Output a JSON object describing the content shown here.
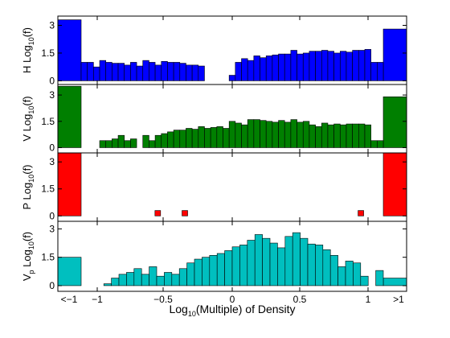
{
  "chart_data": [
    {
      "type": "bar",
      "panel": "H",
      "ylabel": {
        "pre": "H Log",
        "sub": "10",
        "post": "(f)"
      },
      "color": "#0000ff",
      "ylim": [
        -0.2,
        3.5
      ],
      "yticks": [
        "0",
        "1.5",
        "3"
      ],
      "values": [
        3.3,
        1.0,
        1.0,
        0.75,
        1.1,
        1.0,
        0.95,
        0.95,
        0.85,
        1.0,
        0.8,
        1.1,
        1.0,
        0.85,
        1.05,
        1.0,
        1.0,
        0.95,
        0.85,
        0.85,
        0.8,
        0,
        0,
        0,
        0,
        0.3,
        1.0,
        1.2,
        1.1,
        1.35,
        1.25,
        1.35,
        1.4,
        1.45,
        1.45,
        1.65,
        1.45,
        1.5,
        1.6,
        1.6,
        1.65,
        1.6,
        1.5,
        1.6,
        1.55,
        1.65,
        1.65,
        1.7,
        1.0,
        1.0,
        2.8
      ]
    },
    {
      "type": "bar",
      "panel": "V",
      "ylabel": {
        "pre": "V Log",
        "sub": "10",
        "post": "(f)"
      },
      "color": "#007f00",
      "ylim": [
        -0.3,
        3.6
      ],
      "yticks": [
        "0",
        "1.5",
        "3"
      ],
      "values": [
        3.5,
        0,
        0,
        0,
        0.4,
        0.4,
        0.5,
        0.7,
        0.4,
        0.5,
        0,
        0.7,
        0.4,
        0.7,
        0.8,
        0.9,
        1.0,
        1.0,
        1.1,
        1.05,
        1.2,
        1.1,
        1.15,
        1.2,
        1.1,
        1.5,
        1.4,
        1.3,
        1.6,
        1.6,
        1.55,
        1.5,
        1.45,
        1.55,
        1.45,
        1.6,
        1.45,
        1.5,
        1.3,
        1.2,
        1.4,
        1.3,
        1.35,
        1.3,
        1.35,
        1.35,
        1.35,
        1.3,
        0.4,
        0.4,
        2.9
      ]
    },
    {
      "type": "bar",
      "panel": "P",
      "ylabel": {
        "pre": "P Log",
        "sub": "10",
        "post": "(f)"
      },
      "color": "#ff0000",
      "ylim": [
        -0.3,
        3.5
      ],
      "yticks": [
        "0",
        "1.5",
        "3"
      ],
      "values": [
        3.5,
        0,
        0,
        0,
        0,
        0,
        0,
        0,
        0,
        0,
        0,
        0,
        0.3,
        0,
        0,
        0,
        0,
        0,
        0,
        0,
        0,
        0,
        0,
        0,
        0,
        0,
        0,
        0,
        0,
        0,
        0,
        0,
        0,
        0,
        0,
        0,
        0,
        0,
        0,
        0,
        0,
        0,
        0,
        0,
        0,
        0,
        0,
        0,
        0,
        0,
        0,
        0,
        0,
        0,
        0,
        0,
        0,
        0,
        0,
        0,
        0,
        0,
        0,
        0,
        0,
        0,
        0,
        0,
        0.3,
        0,
        0,
        0,
        3.5
      ],
      "sparse_bins": [
        {
          "x": -0.55,
          "value": 0.3
        },
        {
          "x": -0.35,
          "value": 0.3
        },
        {
          "x": 0.95,
          "value": 0.3
        }
      ]
    },
    {
      "type": "bar",
      "panel": "Vp",
      "ylabel": {
        "pre": "V",
        "sub": "p",
        "post": " Log",
        "sub2": "10",
        "post2": "(f)"
      },
      "color": "#00bfbf",
      "ylim": [
        -0.3,
        3.4
      ],
      "yticks": [
        "0",
        "1.5",
        "3"
      ],
      "values": [
        1.5,
        0,
        0,
        0,
        0.1,
        0.4,
        0.6,
        0.7,
        0.9,
        0.6,
        1.0,
        0.5,
        0.7,
        0.6,
        0.9,
        1.2,
        1.4,
        1.5,
        1.6,
        1.7,
        1.85,
        2.05,
        2.15,
        2.4,
        2.7,
        2.5,
        2.25,
        2.0,
        2.6,
        2.8,
        2.5,
        2.2,
        2.15,
        1.9,
        1.6,
        1.0,
        1.3,
        1.2,
        0.5,
        0,
        0.8,
        0.4
      ]
    }
  ],
  "x_axis": {
    "label": {
      "pre": "Log",
      "sub": "10",
      "post": "(Multiple) of Density"
    },
    "ticks": [
      "<−1",
      "−1",
      "−0.5",
      "0",
      "0.5",
      "1",
      ">1"
    ]
  }
}
